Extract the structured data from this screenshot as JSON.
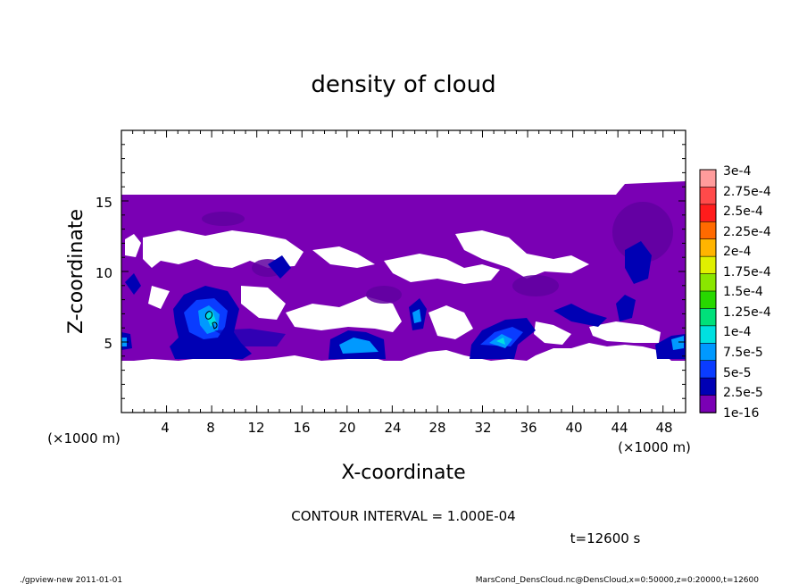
{
  "chart_data": {
    "type": "heatmap",
    "title": "density of cloud",
    "xlabel": "X-coordinate",
    "ylabel": "Z-coordinate",
    "x_unit": "(×1000 m)",
    "z_unit": "(×1000 m)",
    "xlim": [
      0,
      50
    ],
    "ylim": [
      0,
      20
    ],
    "x_ticks": [
      "4",
      "8",
      "12",
      "16",
      "20",
      "24",
      "28",
      "32",
      "36",
      "40",
      "44",
      "48"
    ],
    "y_ticks": [
      "5",
      "10",
      "15"
    ],
    "colorbar_labels": [
      "3e-4",
      "2.75e-4",
      "2.5e-4",
      "2.25e-4",
      "2e-4",
      "1.75e-4",
      "1.5e-4",
      "1.25e-4",
      "1e-4",
      "7.5e-5",
      "5e-5",
      "2.5e-5",
      "1e-16"
    ],
    "colorbar_colors": [
      "#ff9c9c",
      "#ff4a4a",
      "#ff1c1c",
      "#ff6a00",
      "#ffb400",
      "#e0f000",
      "#8ae600",
      "#28d800",
      "#00e07a",
      "#00e0e0",
      "#0099ff",
      "#0a3cff",
      "#0000b4",
      "#7a00b4"
    ],
    "contour_interval": "CONTOUR INTERVAL = 1.000E-04",
    "time_label": "t=12600 s",
    "footer_left": "./gpview-new   2011-01-01",
    "footer_right": "MarsCond_DensCloud.nc@DensCloud,x=0:50000,z=0:20000,t=12600",
    "cloud_layer": {
      "bottom_km": 4.0,
      "top_km": 15.3,
      "top_right_km": 16.0,
      "value_background": "1e-16"
    },
    "dense_patches": [
      {
        "x_center_km": 8,
        "z_center_km": 7,
        "peak": "7.5e-5"
      },
      {
        "x_center_km": 20,
        "z_center_km": 5,
        "peak": "5e-5"
      },
      {
        "x_center_km": 33,
        "z_center_km": 5,
        "peak": "7.5e-5"
      },
      {
        "x_center_km": 46,
        "z_center_km": 12,
        "peak": "2.5e-5"
      },
      {
        "x_center_km": 26.5,
        "z_center_km": 7.5,
        "peak": "2.5e-5"
      },
      {
        "x_center_km": 41,
        "z_center_km": 8,
        "peak": "2.5e-5"
      },
      {
        "x_center_km": 49.5,
        "z_center_km": 5,
        "peak": "5e-5"
      }
    ]
  }
}
